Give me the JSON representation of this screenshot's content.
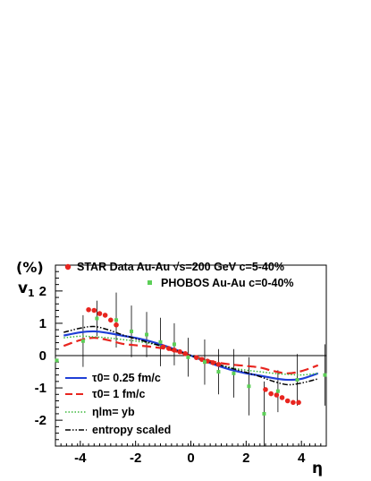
{
  "chart_data": {
    "type": "line",
    "xlim": [
      -4.9,
      4.9
    ],
    "ylim": [
      -2.8,
      2.8
    ],
    "x_ticks": [
      -4,
      -2,
      0,
      2,
      4
    ],
    "y_ticks": [
      -2,
      -1,
      0,
      1,
      2
    ],
    "xlabel": "η",
    "ylabel": "v",
    "ylabel_sub": "1",
    "yunit": "(%)",
    "grid": false,
    "zero_line": true,
    "legend": {
      "star": "STAR Data  Au-Au  √s=200 GeV c=5-40%",
      "phobos": "PHOBOS  Au-Au  c=0-40%",
      "tau025": "τ0= 0.25 fm/c",
      "tau1": "τ0= 1 fm/c",
      "etalm": "ηlm= yb",
      "entropy": "entropy scaled"
    },
    "colors": {
      "star": "#e8251f",
      "phobos": "#5ccf57",
      "tau025": "#1f3fd6",
      "tau1": "#e8251f",
      "etalm": "#3cb83c",
      "entropy": "#000000"
    },
    "star_points": [
      {
        "x": -3.7,
        "y": 1.42
      },
      {
        "x": -3.5,
        "y": 1.4
      },
      {
        "x": -3.3,
        "y": 1.3
      },
      {
        "x": -3.1,
        "y": 1.25
      },
      {
        "x": -2.9,
        "y": 1.1
      },
      {
        "x": -2.7,
        "y": 0.95
      },
      {
        "x": -1.0,
        "y": 0.27
      },
      {
        "x": -0.8,
        "y": 0.22
      },
      {
        "x": -0.6,
        "y": 0.17
      },
      {
        "x": -0.4,
        "y": 0.12
      },
      {
        "x": -0.2,
        "y": 0.06
      },
      {
        "x": 0.2,
        "y": -0.06
      },
      {
        "x": 0.4,
        "y": -0.12
      },
      {
        "x": 0.6,
        "y": -0.17
      },
      {
        "x": 0.8,
        "y": -0.22
      },
      {
        "x": 1.0,
        "y": -0.27
      },
      {
        "x": 2.7,
        "y": -1.05
      },
      {
        "x": 2.9,
        "y": -1.18
      },
      {
        "x": 3.1,
        "y": -1.22
      },
      {
        "x": 3.3,
        "y": -1.3
      },
      {
        "x": 3.5,
        "y": -1.4
      },
      {
        "x": 3.7,
        "y": -1.45
      },
      {
        "x": 3.9,
        "y": -1.45
      }
    ],
    "phobos_points": [
      {
        "x": -4.85,
        "y": -0.15,
        "err": 0.0
      },
      {
        "x": -3.9,
        "y": 0.45,
        "err": 0.8
      },
      {
        "x": -3.4,
        "y": 1.15,
        "err": 0.55
      },
      {
        "x": -2.7,
        "y": 1.1,
        "err": 0.85
      },
      {
        "x": -2.15,
        "y": 0.75,
        "err": 0.8
      },
      {
        "x": -1.6,
        "y": 0.65,
        "err": 0.7
      },
      {
        "x": -1.1,
        "y": 0.42,
        "err": 0.75
      },
      {
        "x": -0.6,
        "y": 0.35,
        "err": 0.65
      },
      {
        "x": -0.1,
        "y": -0.05,
        "err": 0.6
      },
      {
        "x": 0.5,
        "y": -0.2,
        "err": 0.7
      },
      {
        "x": 1.0,
        "y": -0.5,
        "err": 0.7
      },
      {
        "x": 1.55,
        "y": -0.55,
        "err": 0.75
      },
      {
        "x": 2.1,
        "y": -0.95,
        "err": 0.9
      },
      {
        "x": 2.65,
        "y": -1.8,
        "err": 1.0
      },
      {
        "x": 3.15,
        "y": -1.1,
        "err": 0.65
      },
      {
        "x": 3.85,
        "y": -0.75,
        "err": 0.8
      },
      {
        "x": 4.85,
        "y": -0.6,
        "err": 0.95
      }
    ],
    "series": [
      {
        "key": "tau025",
        "x": [
          -4.6,
          -4.0,
          -3.5,
          -3.0,
          -2.5,
          -2.0,
          -1.5,
          -1.0,
          -0.5,
          0.0,
          0.5,
          1.0,
          1.5,
          2.0,
          2.5,
          3.0,
          3.5,
          4.0,
          4.6
        ],
        "y": [
          0.62,
          0.72,
          0.75,
          0.7,
          0.62,
          0.55,
          0.45,
          0.32,
          0.17,
          0.0,
          -0.17,
          -0.32,
          -0.45,
          -0.55,
          -0.62,
          -0.7,
          -0.75,
          -0.72,
          -0.55
        ]
      },
      {
        "key": "tau1",
        "x": [
          -4.6,
          -4.0,
          -3.5,
          -3.0,
          -2.5,
          -2.0,
          -1.5,
          -1.0,
          -0.5,
          0.0,
          0.5,
          1.0,
          1.5,
          2.0,
          2.5,
          3.0,
          3.5,
          4.0,
          4.6
        ],
        "y": [
          0.3,
          0.48,
          0.55,
          0.48,
          0.37,
          0.32,
          0.28,
          0.22,
          0.12,
          0.0,
          -0.12,
          -0.22,
          -0.28,
          -0.32,
          -0.37,
          -0.48,
          -0.55,
          -0.48,
          -0.3
        ]
      },
      {
        "key": "etalm",
        "x": [
          -4.6,
          -4.0,
          -3.5,
          -3.0,
          -2.5,
          -2.0,
          -1.5,
          -1.0,
          -0.5,
          0.0,
          0.5,
          1.0,
          1.5,
          2.0,
          2.5,
          3.0,
          3.5,
          4.0,
          4.6
        ],
        "y": [
          0.55,
          0.6,
          0.58,
          0.55,
          0.5,
          0.45,
          0.38,
          0.28,
          0.15,
          0.0,
          -0.15,
          -0.28,
          -0.38,
          -0.45,
          -0.5,
          -0.55,
          -0.58,
          -0.6,
          -0.55
        ]
      },
      {
        "key": "entropy",
        "x": [
          -4.6,
          -4.0,
          -3.5,
          -3.0,
          -2.5,
          -2.0,
          -1.5,
          -1.0,
          -0.5,
          0.0,
          0.5,
          1.0,
          1.5,
          2.0,
          2.5,
          3.0,
          3.5,
          4.0,
          4.6
        ],
        "y": [
          0.72,
          0.85,
          0.9,
          0.8,
          0.65,
          0.52,
          0.4,
          0.28,
          0.15,
          0.0,
          -0.15,
          -0.28,
          -0.4,
          -0.52,
          -0.65,
          -0.8,
          -0.9,
          -0.85,
          -0.72
        ]
      }
    ]
  }
}
